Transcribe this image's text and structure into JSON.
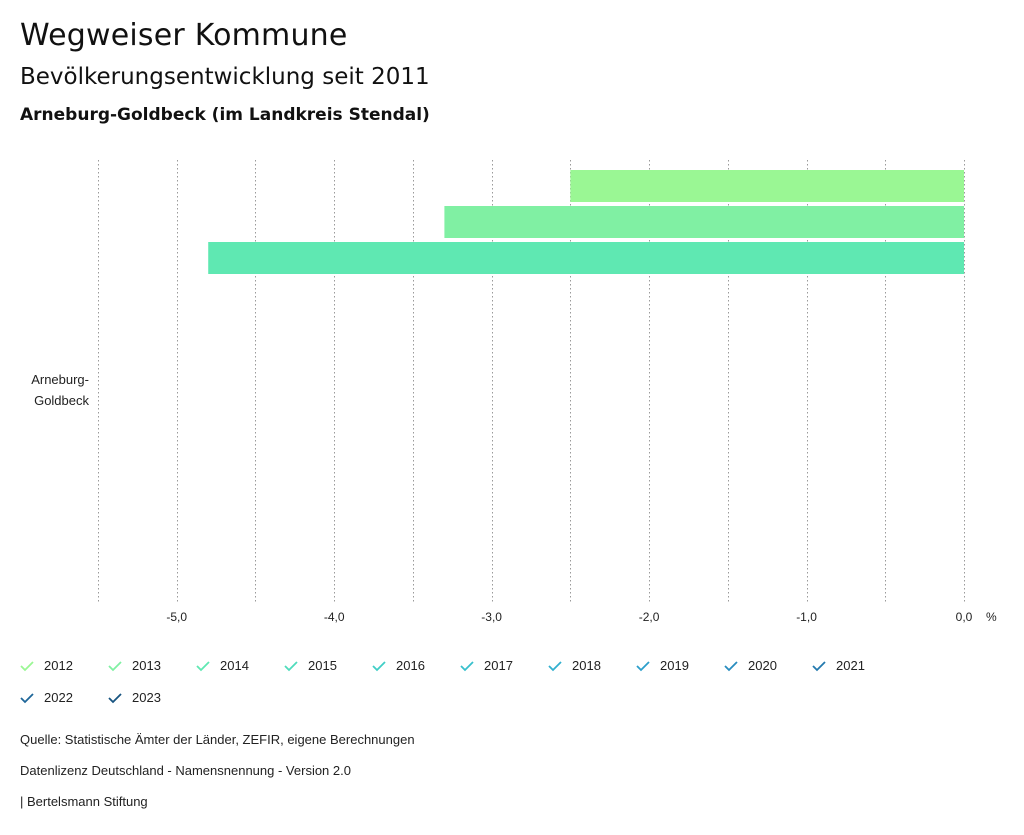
{
  "header": {
    "title": "Wegweiser Kommune",
    "subtitle": "Bevölkerungsentwicklung seit 2011",
    "region": "Arneburg-Goldbeck (im Landkreis Stendal)"
  },
  "chart_data": {
    "type": "bar",
    "orientation": "horizontal",
    "categories": [
      "Arneburg-Goldbeck"
    ],
    "category_label_lines": [
      "Arneburg-",
      "Goldbeck"
    ],
    "unit": "%",
    "xlim": [
      -5.5,
      0
    ],
    "ticks": [
      -5.0,
      -4.0,
      -3.0,
      -2.0,
      -1.0,
      0.0
    ],
    "tick_labels": [
      "-5,0",
      "-4,0",
      "-3,0",
      "-2,0",
      "-1,0",
      "0,0"
    ],
    "grid": "vertical dotted",
    "series": [
      {
        "name": "2012",
        "color": "#9af794",
        "values": [
          -2.5
        ]
      },
      {
        "name": "2013",
        "color": "#80f0a3",
        "values": [
          -3.3
        ]
      },
      {
        "name": "2014",
        "color": "#5fe8b2",
        "values": [
          -4.8
        ]
      },
      {
        "name": "2015",
        "color": "#4fdcbc",
        "values": [
          null
        ]
      },
      {
        "name": "2016",
        "color": "#40cec6",
        "values": [
          null
        ]
      },
      {
        "name": "2017",
        "color": "#38c0cc",
        "values": [
          null
        ]
      },
      {
        "name": "2018",
        "color": "#32b0cf",
        "values": [
          null
        ]
      },
      {
        "name": "2019",
        "color": "#2c9fcb",
        "values": [
          null
        ]
      },
      {
        "name": "2020",
        "color": "#288cbf",
        "values": [
          null
        ]
      },
      {
        "name": "2021",
        "color": "#2379ae",
        "values": [
          null
        ]
      },
      {
        "name": "2022",
        "color": "#1e6699",
        "values": [
          null
        ]
      },
      {
        "name": "2023",
        "color": "#175480",
        "values": [
          null
        ]
      }
    ]
  },
  "footer": {
    "source": "Quelle: Statistische Ämter der Länder, ZEFIR, eigene Berechnungen",
    "license": "Datenlizenz Deutschland - Namensnennung - Version 2.0",
    "publisher": "| Bertelsmann Stiftung"
  }
}
